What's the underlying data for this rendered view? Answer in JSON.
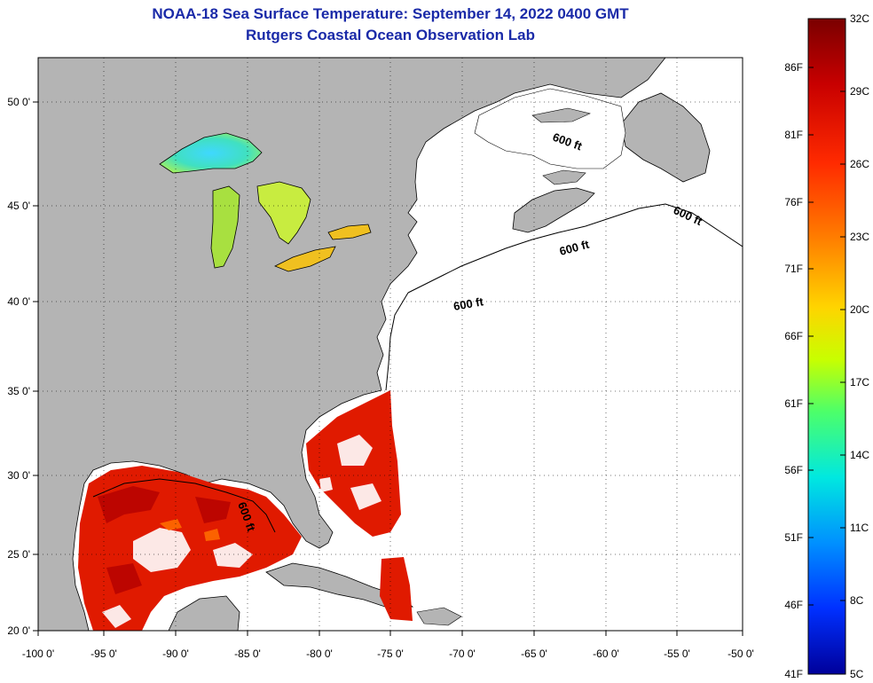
{
  "title": "NOAA-18 Sea Surface Temperature:  September 14, 2022 0400 GMT",
  "subtitle": "Rutgers Coastal Ocean Observation Lab",
  "lon_ticks": [
    "-100 0'",
    "-95 0'",
    "-90 0'",
    "-85 0'",
    "-80 0'",
    "-75 0'",
    "-70 0'",
    "-65 0'",
    "-60 0'",
    "-55 0'",
    "-50 0'"
  ],
  "lat_ticks": [
    "50 0'",
    "45 0'",
    "40 0'",
    "35 0'",
    "30 0'",
    "25 0'",
    "20 0'"
  ],
  "contour_labels": [
    "600 ft",
    "600 ft",
    "600 ft",
    "600 ft",
    "600 ft"
  ],
  "colorbar": {
    "celsius": [
      "32C",
      "29C",
      "26C",
      "23C",
      "20C",
      "17C",
      "14C",
      "11C",
      "8C",
      "5C"
    ],
    "fahrenheit": [
      "86F",
      "81F",
      "76F",
      "71F",
      "66F",
      "61F",
      "56F",
      "51F",
      "46F",
      "41F"
    ],
    "stops": [
      "#7a0000",
      "#c80000",
      "#ff2a00",
      "#ff7a00",
      "#ffd400",
      "#c8ff00",
      "#4cff6a",
      "#00e8e0",
      "#0090ff",
      "#0030ff",
      "#00009a"
    ]
  },
  "colors": {
    "land": "#b4b4b4",
    "title": "#1a2aa8",
    "ocean": "#ffffff"
  }
}
